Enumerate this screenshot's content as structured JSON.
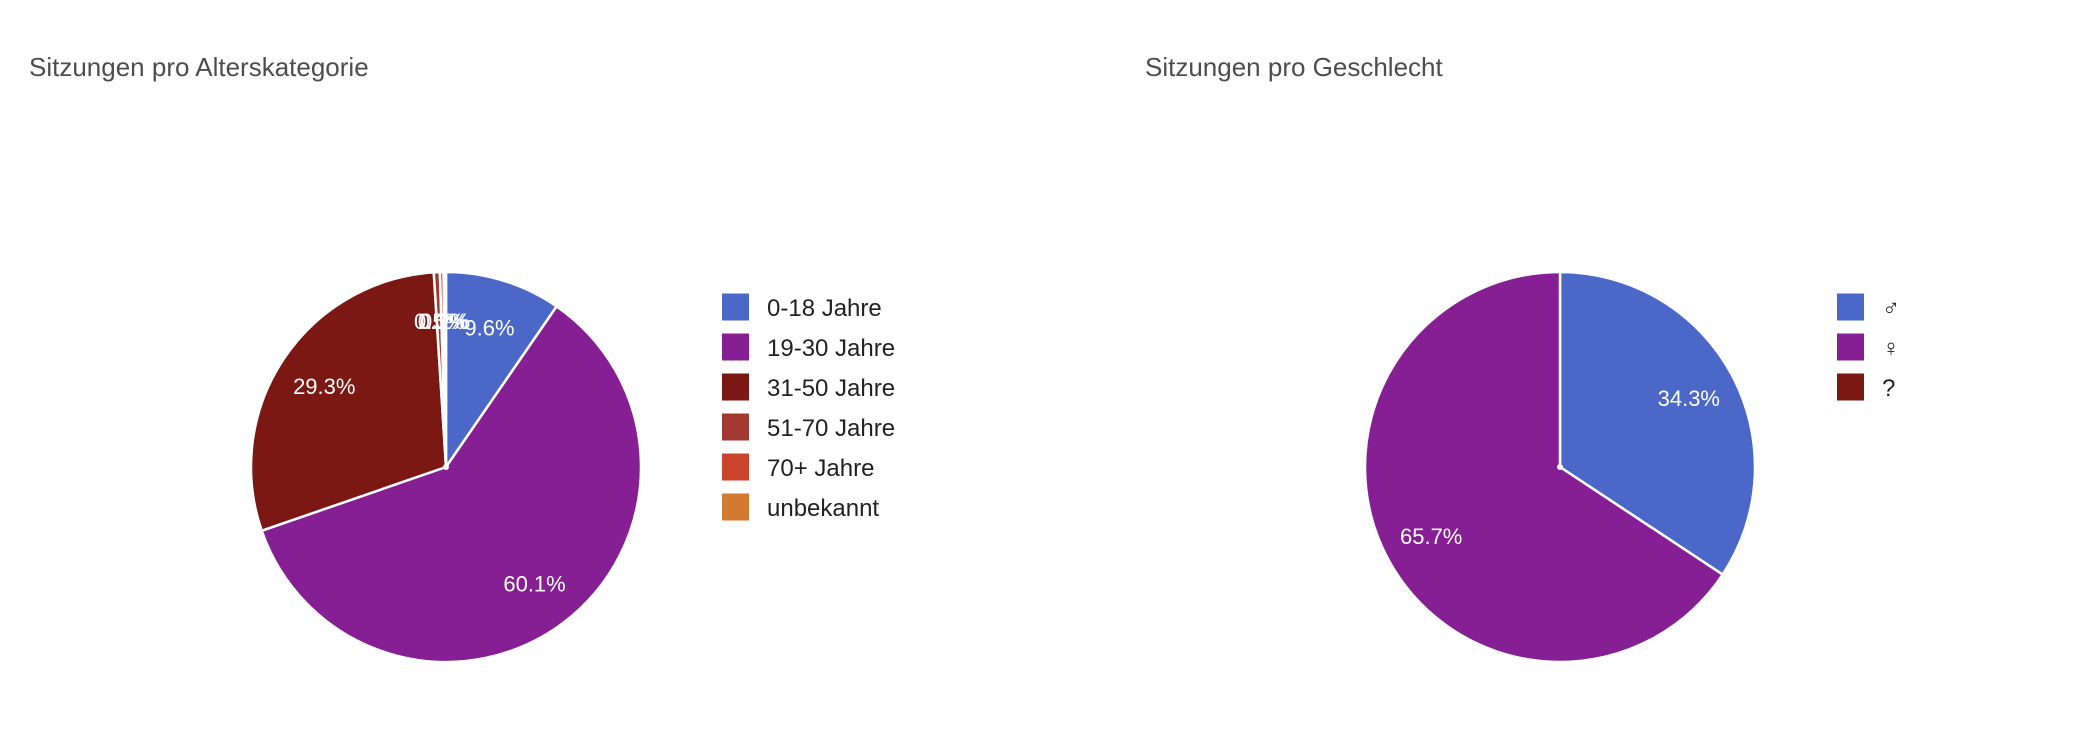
{
  "chart_data": [
    {
      "type": "pie",
      "title": "Sitzungen pro Alterskategorie",
      "legend_position": "right",
      "slices": [
        {
          "label": "0-18 Jahre",
          "value": 9.6,
          "display": "9.6%",
          "color": "#4b67c7"
        },
        {
          "label": "19-30 Jahre",
          "value": 60.1,
          "display": "60.1%",
          "color": "#851f93"
        },
        {
          "label": "31-50 Jahre",
          "value": 29.3,
          "display": "29.3%",
          "color": "#7b1813"
        },
        {
          "label": "51-70 Jahre",
          "value": 0.5,
          "display": "0.5%",
          "color": "#a23a33"
        },
        {
          "label": "70+ Jahre",
          "value": 0.3,
          "display": "0.3%",
          "color": "#c9442a"
        },
        {
          "label": "unbekannt",
          "value": 0.2,
          "display": "0.2%",
          "color": "#d37a31"
        }
      ]
    },
    {
      "type": "pie",
      "title": "Sitzungen pro Geschlecht",
      "legend_position": "right",
      "slices": [
        {
          "label": "♂",
          "value": 34.3,
          "display": "34.3%",
          "color": "#4b67c7"
        },
        {
          "label": "♀",
          "value": 65.7,
          "display": "65.7%",
          "color": "#851f93"
        },
        {
          "label": "?",
          "value": 0.0,
          "display": "",
          "color": "#7b1813"
        }
      ]
    }
  ]
}
